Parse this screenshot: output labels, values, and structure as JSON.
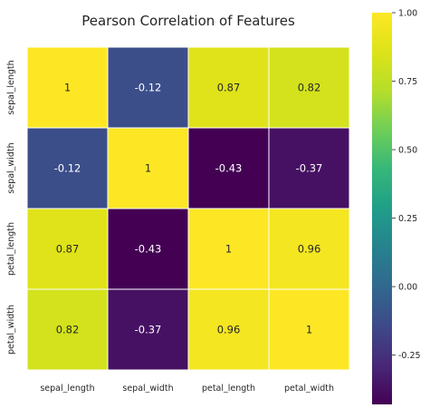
{
  "chart_data": {
    "type": "heatmap",
    "title": "Pearson Correlation of Features",
    "rows": [
      "sepal_length",
      "sepal_width",
      "petal_length",
      "petal_width"
    ],
    "columns": [
      "sepal_length",
      "sepal_width",
      "petal_length",
      "petal_width"
    ],
    "values": [
      [
        1,
        -0.12,
        0.87,
        0.82
      ],
      [
        -0.12,
        1,
        -0.43,
        -0.37
      ],
      [
        0.87,
        -0.43,
        1,
        0.96
      ],
      [
        0.82,
        -0.37,
        0.96,
        1
      ]
    ],
    "annotations": [
      [
        "1",
        "-0.12",
        "0.87",
        "0.82"
      ],
      [
        "-0.12",
        "1",
        "-0.43",
        "-0.37"
      ],
      [
        "0.87",
        "-0.43",
        "1",
        "0.96"
      ],
      [
        "0.82",
        "-0.37",
        "0.96",
        "1"
      ]
    ],
    "colorbar": {
      "min": -0.43,
      "max": 1.0,
      "ticks": [
        "1.00",
        "0.75",
        "0.50",
        "0.25",
        "0.00",
        "-0.25"
      ],
      "colormap": "viridis"
    }
  }
}
